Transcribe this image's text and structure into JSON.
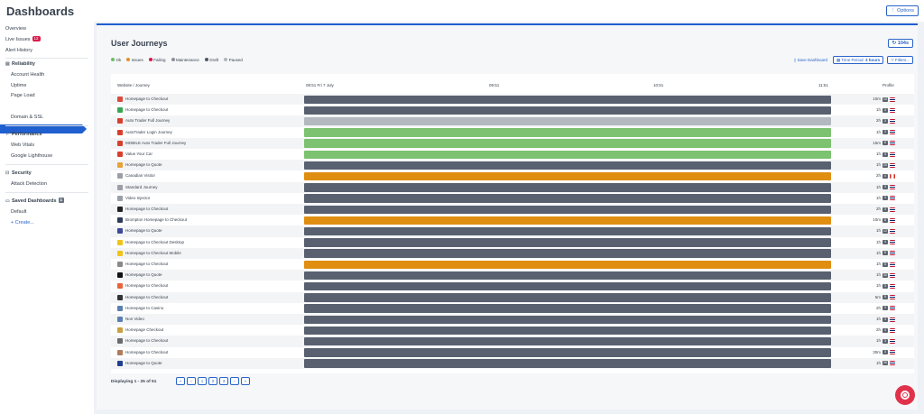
{
  "app": {
    "title": "Dashboards",
    "options_label": "⋮ Options"
  },
  "sidebar": {
    "overview": "Overview",
    "live_issues": "Live Issues",
    "live_issues_count": "12",
    "alert_history": "Alert History",
    "reliability": "Reliability",
    "account_health": "Account Health",
    "uptime": "Uptime",
    "page_load": "Page Load",
    "user_journeys": "User Journeys",
    "domain_ssl": "Domain & SSL",
    "performance": "Performance",
    "web_vitals": "Web Vitals",
    "google_lighthouse": "Google Lighthouse",
    "security": "Security",
    "attack_detection": "Attack Detection",
    "saved_dashboards": "Saved Dashboards",
    "saved_count": "1",
    "default": "Default",
    "create": "+ Create..."
  },
  "main": {
    "title": "User Journeys",
    "refresh_label": "↻ 104s",
    "legend": [
      {
        "label": "Ok",
        "color": "#6cbf64"
      },
      {
        "label": "Issues",
        "color": "#e0902a"
      },
      {
        "label": "Failing",
        "color": "#d81b4a"
      },
      {
        "label": "Maintenance",
        "color": "#8a9199"
      },
      {
        "label": "Draft",
        "color": "#4e5866"
      },
      {
        "label": "Paused",
        "color": "#b0b6bd"
      }
    ],
    "save_dashboard": "Save Dashboard",
    "time_period_label": "Time Period:",
    "time_period_value": "3 hours",
    "filters_label": "Filters...",
    "columns": {
      "website": "Website / Journey",
      "t0": "08:51 Fri 7 July",
      "t1": "09:51",
      "t2": "10:51",
      "t3": "11:51",
      "profile": "Profile"
    },
    "rows": [
      {
        "name": "Homepage to Checkout",
        "status": "draft",
        "freq": "10m",
        "count": "10",
        "flag": "uk",
        "icon_color": "#d94b3c"
      },
      {
        "name": "Homepage to Checkout",
        "status": "draft",
        "freq": "1h",
        "count": "3",
        "flag": "uk",
        "icon_color": "#3aa655"
      },
      {
        "name": "Auto Trader Full Journey",
        "status": "paused",
        "freq": "2h",
        "count": "3",
        "flag": "uk",
        "icon_color": "#d8402e"
      },
      {
        "name": "AutoTrader Login Journey",
        "status": "ok",
        "freq": "1h",
        "count": "3",
        "flag": "uk",
        "icon_color": "#d8402e"
      },
      {
        "name": "MOBILE Auto Trader Full Journey",
        "status": "ok",
        "freq": "15m",
        "count": "8",
        "flag": "uk",
        "icon_color": "#d8402e"
      },
      {
        "name": "Value Your Car",
        "status": "ok",
        "freq": "1h",
        "count": "4",
        "flag": "uk",
        "icon_color": "#d8402e"
      },
      {
        "name": "Homepage to Quote",
        "status": "draft",
        "freq": "1h",
        "count": "20",
        "flag": "uk",
        "icon_color": "#e8a23a"
      },
      {
        "name": "Canadian Visitor",
        "status": "issues",
        "freq": "2h",
        "count": "4",
        "flag": "ca",
        "icon_color": "#9aa0a6"
      },
      {
        "name": "Standard Journey",
        "status": "draft",
        "freq": "1h",
        "count": "3",
        "flag": "uk",
        "icon_color": "#9aa0a6"
      },
      {
        "name": "Video Injector",
        "status": "draft",
        "freq": "1h",
        "count": "3",
        "flag": "uk",
        "icon_color": "#9aa0a6"
      },
      {
        "name": "Homepage to Checkout",
        "status": "draft",
        "freq": "2h",
        "count": "3",
        "flag": "uk",
        "icon_color": "#222222"
      },
      {
        "name": "Brompton Homepage to Checkout",
        "status": "issues",
        "freq": "10m",
        "count": "8",
        "flag": "uk",
        "icon_color": "#2d3c5a"
      },
      {
        "name": "Homepage to Quote",
        "status": "draft",
        "freq": "1h",
        "count": "12",
        "flag": "uk",
        "icon_color": "#3b4a9a"
      },
      {
        "name": "Homepage to Checkout Desktop",
        "status": "draft",
        "freq": "1h",
        "count": "4",
        "flag": "uk",
        "icon_color": "#f0c419"
      },
      {
        "name": "Homepage to Checkout Mobile",
        "status": "draft",
        "freq": "1h",
        "count": "8",
        "flag": "uk",
        "icon_color": "#f0c419"
      },
      {
        "name": "Homepage to Checkout",
        "status": "issues",
        "freq": "1h",
        "count": "5",
        "flag": "uk",
        "icon_color": "#8a8a8a"
      },
      {
        "name": "Homepage to Quote",
        "status": "draft",
        "freq": "1h",
        "count": "30",
        "flag": "uk",
        "icon_color": "#111111"
      },
      {
        "name": "Homepage to Checkout",
        "status": "draft",
        "freq": "1h",
        "count": "3",
        "flag": "uk",
        "icon_color": "#e8643a"
      },
      {
        "name": "Homepage to Checkout",
        "status": "draft",
        "freq": "5m",
        "count": "5",
        "flag": "uk",
        "icon_color": "#333333"
      },
      {
        "name": "Homepage to Casino",
        "status": "draft",
        "freq": "2h",
        "count": "3",
        "flag": "uk",
        "icon_color": "#5a7fb0"
      },
      {
        "name": "Non Video",
        "status": "draft",
        "freq": "1h",
        "count": "3",
        "flag": "uk",
        "icon_color": "#5a7fb0"
      },
      {
        "name": "Homepage Checkout",
        "status": "draft",
        "freq": "2h",
        "count": "4",
        "flag": "uk",
        "icon_color": "#c8a040"
      },
      {
        "name": "Homepage to Checkout",
        "status": "draft",
        "freq": "1h",
        "count": "3",
        "flag": "uk",
        "icon_color": "#6b6b6b"
      },
      {
        "name": "Homepage to Checkout",
        "status": "draft",
        "freq": "30m",
        "count": "3",
        "flag": "uk",
        "icon_color": "#b07c5a"
      },
      {
        "name": "Homepage to Quote",
        "status": "draft",
        "freq": "1h",
        "count": "36",
        "flag": "uk",
        "icon_color": "#1f3f8f"
      }
    ],
    "status_colors": {
      "ok": "#7cc270",
      "issues": "#e08e12",
      "draft": "#596170",
      "paused": "#b4b9bf"
    },
    "pagination": {
      "info": "Displaying 1 - 25 of 51",
      "first": "«",
      "prev": "‹",
      "pages": [
        "1",
        "2",
        "3"
      ],
      "next": "›",
      "last": "»"
    }
  }
}
